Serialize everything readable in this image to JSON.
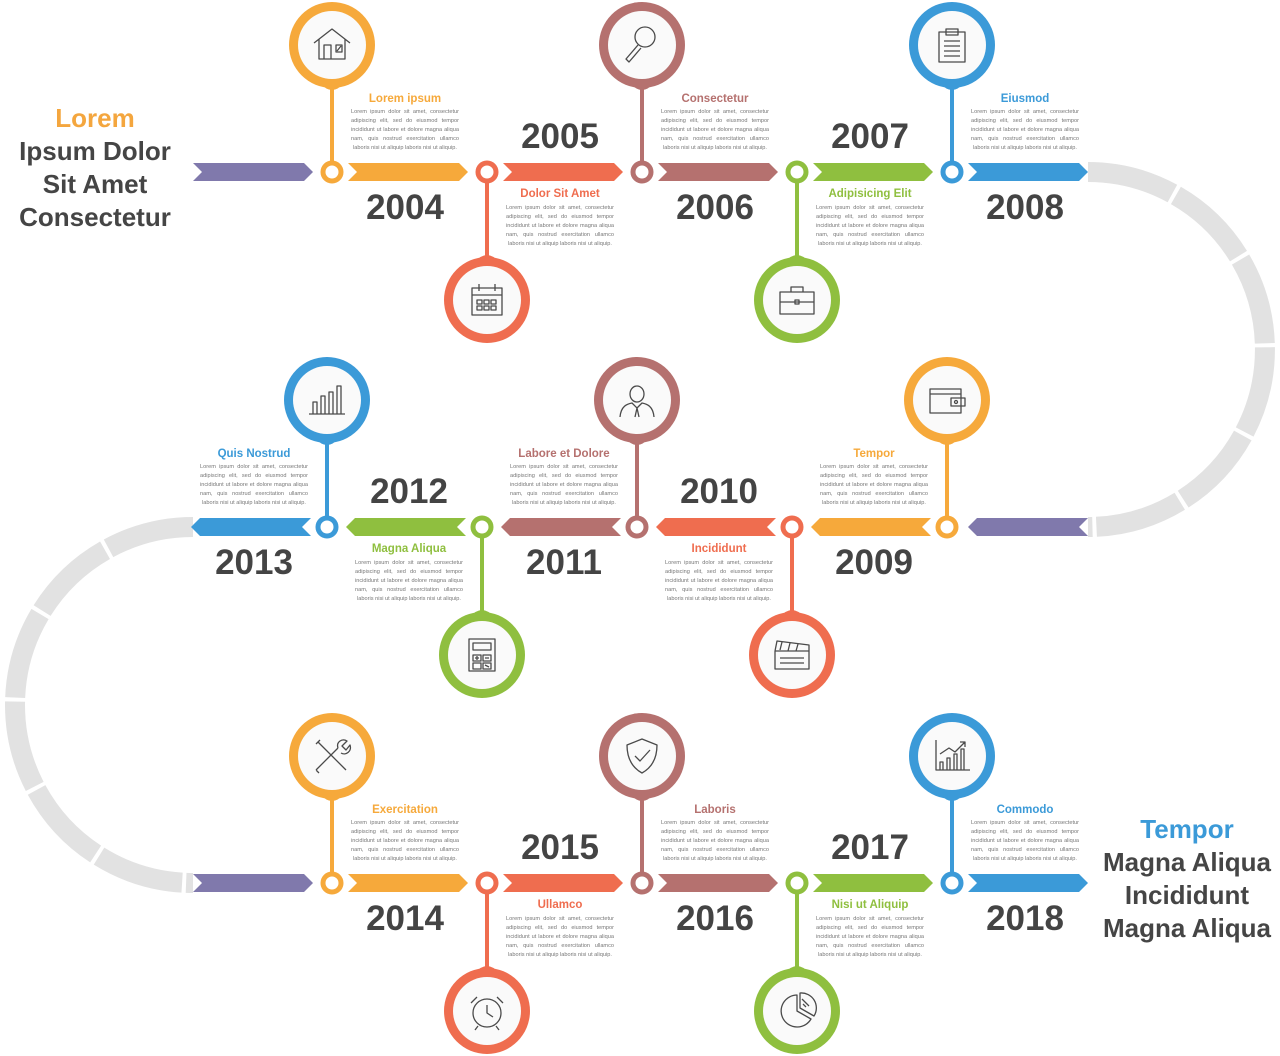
{
  "header_left": {
    "accent": "Lorem",
    "lines": [
      "Ipsum Dolor",
      "Sit Amet",
      "Consectetur"
    ],
    "accent_color": "#f4a63e"
  },
  "header_right": {
    "accent": "Tempor",
    "lines": [
      "Magna Aliqua",
      "Incididunt",
      "Magna Aliqua"
    ],
    "accent_color": "#3b9ad8"
  },
  "lead_color": "#8079ac",
  "connector_color": "#e2e2e2",
  "body_text": "Lorem ipsum dolor sit amet, consectetur adipiscing elit, sed do eiusmod tempor incididunt ut labore et dolore magna aliqua nam, quis nostrud exercitation ullamco laboris nisi ut aliquip laboris nisi ut aliquip.",
  "rows": [
    {
      "direction": "right",
      "items": [
        {
          "year": "2004",
          "title": "Lorem ipsum",
          "color": "#f6a93b",
          "icon": "house-icon"
        },
        {
          "year": "2005",
          "title": "Dolor Sit Amet",
          "color": "#ef6d4f",
          "icon": "calendar-icon"
        },
        {
          "year": "2006",
          "title": "Consectetur",
          "color": "#b5716f",
          "icon": "magnifier-icon"
        },
        {
          "year": "2007",
          "title": "Adipisicing Elit",
          "color": "#8fbf3f",
          "icon": "briefcase-icon"
        },
        {
          "year": "2008",
          "title": "Eiusmod",
          "color": "#3b9ad8",
          "icon": "clipboard-icon"
        }
      ]
    },
    {
      "direction": "left",
      "items": [
        {
          "year": "2009",
          "title": "Tempor",
          "color": "#f6a93b",
          "icon": "wallet-icon"
        },
        {
          "year": "2010",
          "title": "Incididunt",
          "color": "#ef6d4f",
          "icon": "clapperboard-icon"
        },
        {
          "year": "2011",
          "title": "Labore et Dolore",
          "color": "#b5716f",
          "icon": "person-icon"
        },
        {
          "year": "2012",
          "title": "Magna Aliqua",
          "color": "#8fbf3f",
          "icon": "calculator-icon"
        },
        {
          "year": "2013",
          "title": "Quis Nostrud",
          "color": "#3b9ad8",
          "icon": "bar-chart-icon"
        }
      ]
    },
    {
      "direction": "right",
      "items": [
        {
          "year": "2014",
          "title": "Exercitation",
          "color": "#f6a93b",
          "icon": "tools-icon"
        },
        {
          "year": "2015",
          "title": "Ullamco",
          "color": "#ef6d4f",
          "icon": "alarm-clock-icon"
        },
        {
          "year": "2016",
          "title": "Laboris",
          "color": "#b5716f",
          "icon": "shield-icon"
        },
        {
          "year": "2017",
          "title": "Nisi ut Aliquip",
          "color": "#8fbf3f",
          "icon": "pie-chart-icon"
        },
        {
          "year": "2018",
          "title": "Commodo",
          "color": "#3b9ad8",
          "icon": "growth-chart-icon"
        }
      ]
    }
  ]
}
